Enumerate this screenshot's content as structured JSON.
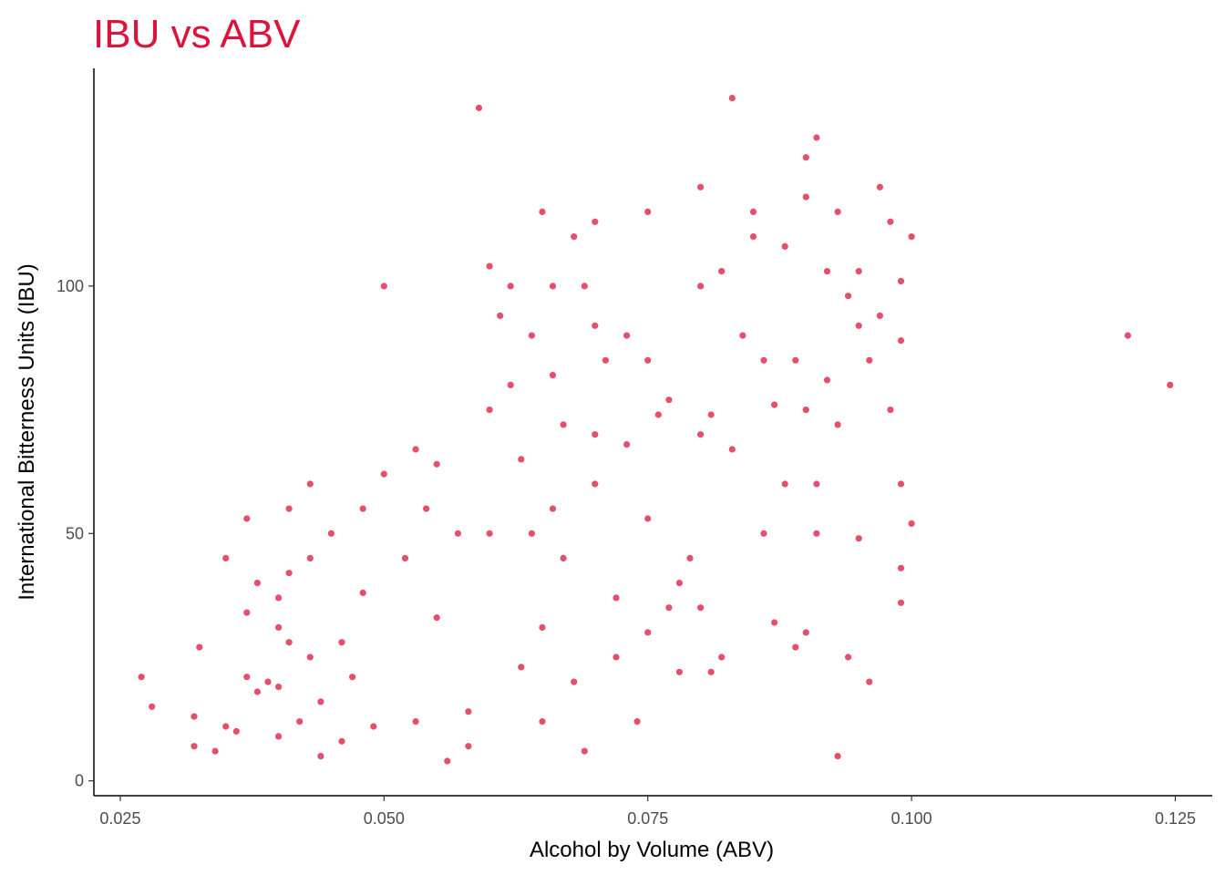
{
  "chart_data": {
    "type": "scatter",
    "title": "IBU vs ABV",
    "xlabel": "Alcohol by Volume (ABV)",
    "ylabel": "International Bitterness Units (IBU)",
    "xlim": [
      0.0225,
      0.1285
    ],
    "ylim": [
      -3,
      144
    ],
    "x_ticks": [
      0.025,
      0.05,
      0.075,
      0.1,
      0.125
    ],
    "x_tick_labels": [
      "0.025",
      "0.050",
      "0.075",
      "0.100",
      "0.125"
    ],
    "y_ticks": [
      0,
      50,
      100
    ],
    "y_tick_labels": [
      "0",
      "50",
      "100"
    ],
    "grid": false,
    "legend": "none",
    "point_color": "#dc143c",
    "points": [
      [
        0.027,
        21
      ],
      [
        0.028,
        15
      ],
      [
        0.032,
        7
      ],
      [
        0.0325,
        27
      ],
      [
        0.032,
        13
      ],
      [
        0.034,
        6
      ],
      [
        0.035,
        11
      ],
      [
        0.035,
        45
      ],
      [
        0.036,
        10
      ],
      [
        0.037,
        53
      ],
      [
        0.037,
        34
      ],
      [
        0.037,
        21
      ],
      [
        0.038,
        18
      ],
      [
        0.038,
        40
      ],
      [
        0.039,
        20
      ],
      [
        0.04,
        19
      ],
      [
        0.04,
        31
      ],
      [
        0.04,
        37
      ],
      [
        0.041,
        55
      ],
      [
        0.041,
        42
      ],
      [
        0.041,
        28
      ],
      [
        0.04,
        9
      ],
      [
        0.042,
        12
      ],
      [
        0.043,
        25
      ],
      [
        0.043,
        60
      ],
      [
        0.043,
        45
      ],
      [
        0.044,
        16
      ],
      [
        0.044,
        5
      ],
      [
        0.045,
        50
      ],
      [
        0.046,
        8
      ],
      [
        0.046,
        28
      ],
      [
        0.047,
        21
      ],
      [
        0.048,
        55
      ],
      [
        0.048,
        38
      ],
      [
        0.05,
        62
      ],
      [
        0.05,
        100
      ],
      [
        0.049,
        11
      ],
      [
        0.052,
        45
      ],
      [
        0.053,
        67
      ],
      [
        0.053,
        12
      ],
      [
        0.054,
        55
      ],
      [
        0.055,
        64
      ],
      [
        0.056,
        4
      ],
      [
        0.055,
        33
      ],
      [
        0.057,
        50
      ],
      [
        0.058,
        14
      ],
      [
        0.058,
        7
      ],
      [
        0.059,
        136
      ],
      [
        0.06,
        75
      ],
      [
        0.06,
        104
      ],
      [
        0.06,
        50
      ],
      [
        0.061,
        94
      ],
      [
        0.062,
        80
      ],
      [
        0.062,
        100
      ],
      [
        0.063,
        65
      ],
      [
        0.063,
        23
      ],
      [
        0.064,
        90
      ],
      [
        0.064,
        50
      ],
      [
        0.065,
        115
      ],
      [
        0.065,
        12
      ],
      [
        0.065,
        31
      ],
      [
        0.066,
        100
      ],
      [
        0.066,
        82
      ],
      [
        0.066,
        55
      ],
      [
        0.067,
        72
      ],
      [
        0.067,
        45
      ],
      [
        0.068,
        20
      ],
      [
        0.068,
        110
      ],
      [
        0.069,
        100
      ],
      [
        0.069,
        6
      ],
      [
        0.07,
        113
      ],
      [
        0.07,
        92
      ],
      [
        0.07,
        70
      ],
      [
        0.07,
        60
      ],
      [
        0.071,
        85
      ],
      [
        0.072,
        37
      ],
      [
        0.072,
        25
      ],
      [
        0.073,
        90
      ],
      [
        0.073,
        68
      ],
      [
        0.074,
        12
      ],
      [
        0.075,
        115
      ],
      [
        0.075,
        85
      ],
      [
        0.075,
        53
      ],
      [
        0.075,
        30
      ],
      [
        0.076,
        74
      ],
      [
        0.077,
        77
      ],
      [
        0.077,
        35
      ],
      [
        0.078,
        40
      ],
      [
        0.078,
        22
      ],
      [
        0.079,
        45
      ],
      [
        0.08,
        100
      ],
      [
        0.08,
        70
      ],
      [
        0.08,
        120
      ],
      [
        0.08,
        35
      ],
      [
        0.081,
        74
      ],
      [
        0.081,
        22
      ],
      [
        0.082,
        103
      ],
      [
        0.082,
        25
      ],
      [
        0.083,
        138
      ],
      [
        0.083,
        67
      ],
      [
        0.084,
        90
      ],
      [
        0.085,
        110
      ],
      [
        0.085,
        115
      ],
      [
        0.086,
        85
      ],
      [
        0.086,
        50
      ],
      [
        0.087,
        76
      ],
      [
        0.087,
        32
      ],
      [
        0.088,
        108
      ],
      [
        0.088,
        60
      ],
      [
        0.089,
        85
      ],
      [
        0.089,
        27
      ],
      [
        0.09,
        75
      ],
      [
        0.09,
        118
      ],
      [
        0.09,
        126
      ],
      [
        0.09,
        30
      ],
      [
        0.091,
        130
      ],
      [
        0.091,
        60
      ],
      [
        0.091,
        50
      ],
      [
        0.092,
        103
      ],
      [
        0.092,
        81
      ],
      [
        0.093,
        115
      ],
      [
        0.093,
        72
      ],
      [
        0.093,
        5
      ],
      [
        0.094,
        98
      ],
      [
        0.094,
        25
      ],
      [
        0.095,
        103
      ],
      [
        0.095,
        92
      ],
      [
        0.095,
        49
      ],
      [
        0.096,
        85
      ],
      [
        0.096,
        20
      ],
      [
        0.097,
        120
      ],
      [
        0.097,
        94
      ],
      [
        0.098,
        75
      ],
      [
        0.098,
        113
      ],
      [
        0.099,
        101
      ],
      [
        0.099,
        89
      ],
      [
        0.099,
        60
      ],
      [
        0.099,
        43
      ],
      [
        0.099,
        36
      ],
      [
        0.1,
        110
      ],
      [
        0.1,
        52
      ],
      [
        0.1205,
        90
      ],
      [
        0.1245,
        80
      ]
    ]
  }
}
